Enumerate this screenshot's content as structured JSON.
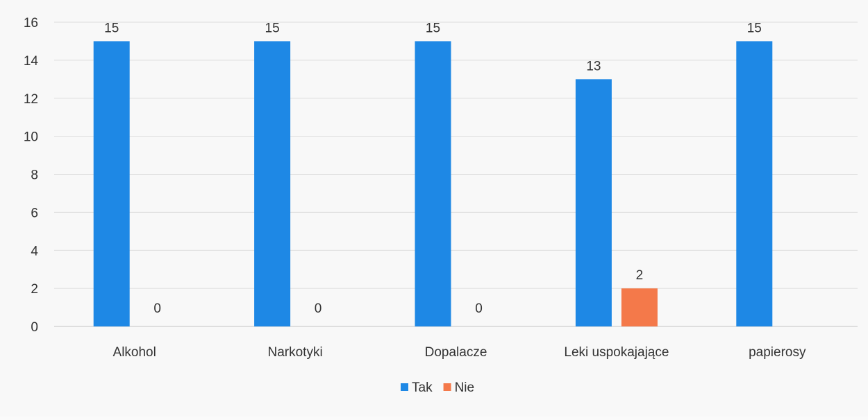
{
  "chart_data": {
    "type": "bar",
    "categories": [
      "Alkohol",
      "Narkotyki",
      "Dopalacze",
      "Leki uspokajające",
      "papierosy"
    ],
    "series": [
      {
        "name": "Tak",
        "values": [
          15,
          15,
          15,
          13,
          15
        ],
        "color": "#1e88e5",
        "labels": [
          "15",
          "15",
          "15",
          "13",
          "15"
        ]
      },
      {
        "name": "Nie",
        "values": [
          0,
          0,
          0,
          2,
          null
        ],
        "color": "#f4794a",
        "labels": [
          "0",
          "0",
          "0",
          "2",
          ""
        ]
      }
    ],
    "ylim": [
      0,
      16
    ],
    "yticks": [
      0,
      2,
      4,
      6,
      8,
      10,
      12,
      14,
      16
    ],
    "ytick_labels": [
      "0",
      "2",
      "4",
      "6",
      "8",
      "10",
      "12",
      "14",
      "16"
    ],
    "grid": true,
    "legend": "bottom-center",
    "title": "",
    "xlabel": "",
    "ylabel": ""
  }
}
